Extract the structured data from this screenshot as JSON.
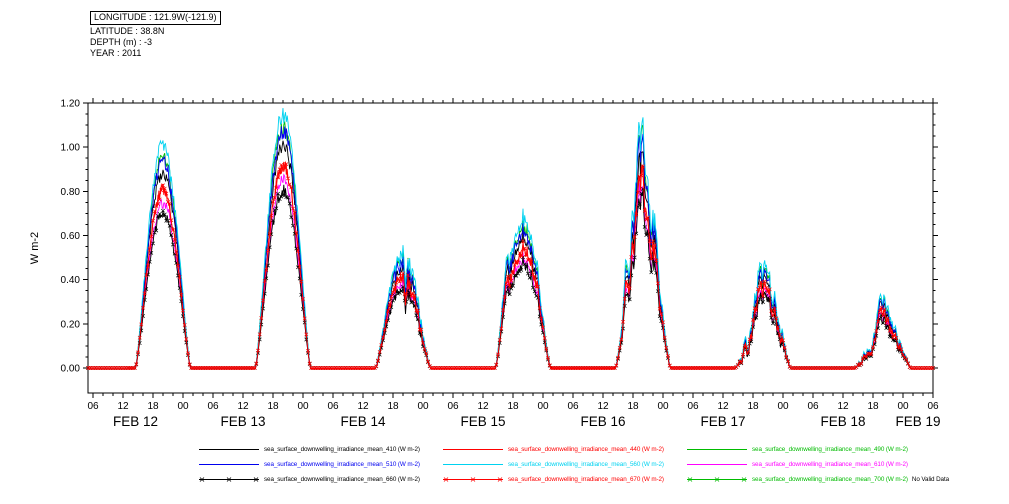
{
  "header": {
    "longitude": "LONGITUDE : 121.9W(-121.9)",
    "latitude": "LATITUDE : 38.8N",
    "depth": "DEPTH (m) : -3",
    "year": "YEAR : 2011"
  },
  "chart_data": {
    "type": "line",
    "title": "",
    "xlabel": "",
    "ylabel": "W m-2",
    "ylim": [
      -0.113,
      1.2
    ],
    "yticks": [
      0,
      0.2,
      0.4,
      0.6,
      0.8,
      1,
      1.2
    ],
    "ytick_labels": [
      "0.00",
      "0.20",
      "0.40",
      "0.60",
      "0.80",
      "1.00",
      "1.20"
    ],
    "x_start_hour": 5,
    "x_end_hour": 174,
    "x_major_step_hours": 6,
    "x_minor_step_hours": 2,
    "x_tick_label_style": "hour-of-day-2-digit",
    "day_labels": [
      "FEB 12",
      "FEB 13",
      "FEB 14",
      "FEB 15",
      "FEB 16",
      "FEB 17",
      "FEB 18",
      "FEB 19"
    ],
    "year_shown": "2011",
    "grid": false,
    "legend_position": "bottom",
    "solar": {
      "center_hour_utc": 20,
      "daylight_halfwidth_hours": 5.5,
      "sample_minutes": 10
    },
    "days": [
      {
        "date": "FEB 12",
        "peak_w_m2": 1.04,
        "cloudiness": 0.06,
        "volatility": 0.06
      },
      {
        "date": "FEB 13",
        "peak_w_m2": 1.19,
        "cloudiness": 0.1,
        "volatility": 0.1
      },
      {
        "date": "FEB 14",
        "peak_w_m2": 0.58,
        "cloudiness": 0.72,
        "volatility": 0.5
      },
      {
        "date": "FEB 15",
        "peak_w_m2": 1.05,
        "cloudiness": 0.38,
        "volatility": 0.45
      },
      {
        "date": "FEB 16",
        "peak_w_m2": 1.17,
        "cloudiness": 0.42,
        "volatility": 0.55
      },
      {
        "date": "FEB 17",
        "peak_w_m2": 0.52,
        "cloudiness": 0.8,
        "volatility": 0.55
      },
      {
        "date": "FEB 18",
        "peak_w_m2": 0.36,
        "cloudiness": 0.7,
        "volatility": 0.35
      }
    ],
    "series": [
      {
        "wavelength": 410,
        "name": "sea_surface_downwelling_irradiance_mean_410 (W m-2)",
        "color": "#000000",
        "marker": false,
        "scale": 0.88
      },
      {
        "wavelength": 440,
        "name": "sea_surface_downwelling_irradiance_mean_440 (W m-2)",
        "color": "#ff0000",
        "marker": false,
        "scale": 0.8
      },
      {
        "wavelength": 490,
        "name": "sea_surface_downwelling_irradiance_mean_490 (W m-2)",
        "color": "#00bb00",
        "marker": false,
        "scale": 0.95
      },
      {
        "wavelength": 510,
        "name": "sea_surface_downwelling_irradiance_mean_510 (W m-2)",
        "color": "#0000ee",
        "marker": false,
        "scale": 0.93
      },
      {
        "wavelength": 560,
        "name": "sea_surface_downwelling_irradiance_mean_560 (W m-2)",
        "color": "#00d2f0",
        "marker": false,
        "scale": 1.0
      },
      {
        "wavelength": 610,
        "name": "sea_surface_downwelling_irradiance_mean_610 (W m-2)",
        "color": "#ff00ff",
        "marker": false,
        "scale": 0.74
      },
      {
        "wavelength": 660,
        "name": "sea_surface_downwelling_irradiance_mean_660 (W m-2)",
        "color": "#000000",
        "marker": true,
        "scale": 0.7
      },
      {
        "wavelength": 670,
        "name": "sea_surface_downwelling_irradiance_mean_670 (W m-2)",
        "color": "#ff0000",
        "marker": true,
        "scale": 0.8
      },
      {
        "wavelength": 700,
        "name": "sea_surface_downwelling_irradiance_mean_700 (W m-2)",
        "color": "#00bb00",
        "marker": true,
        "scale": null,
        "no_data": true,
        "no_data_text": "No Valid Data"
      }
    ]
  }
}
